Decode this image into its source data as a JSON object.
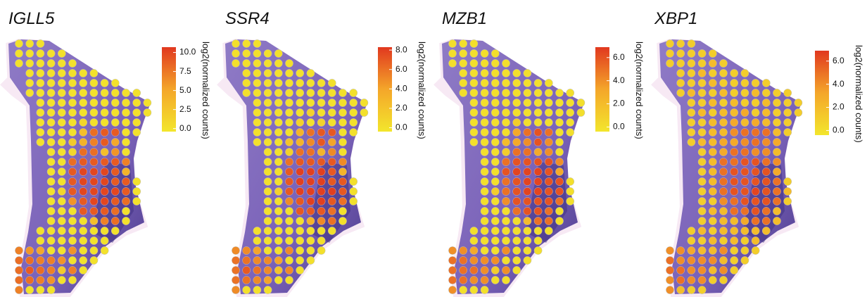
{
  "chart_data": [
    {
      "type": "spatial",
      "title": "IGLL5",
      "colorbar_label": "log2(normalized counts)",
      "colormap": [
        "#f3e62c",
        "#f4a62a",
        "#e1381f"
      ],
      "clim": [
        -0.4,
        10.7
      ],
      "cticks": [
        {
          "value": 0,
          "label": "0.0"
        },
        {
          "value": 2.5,
          "label": "2.5"
        },
        {
          "value": 5,
          "label": "5.0"
        },
        {
          "value": 7.5,
          "label": "7.5"
        },
        {
          "value": 10,
          "label": "10.0"
        }
      ],
      "grid": [
        [
          0,
          0,
          0
        ],
        [
          0,
          0,
          0,
          0,
          0
        ],
        [
          0,
          0,
          0,
          0,
          0,
          0
        ],
        [
          null,
          0,
          0,
          0,
          0,
          0,
          0,
          0
        ],
        [
          null,
          0,
          0,
          0,
          0,
          0,
          0,
          0,
          0,
          0
        ],
        [
          null,
          0,
          0,
          0,
          0,
          0,
          0,
          0,
          0,
          0,
          0,
          0
        ],
        [
          null,
          null,
          0,
          0,
          0,
          0,
          0,
          0,
          0,
          0,
          0,
          0,
          0
        ],
        [
          null,
          null,
          0,
          0,
          0,
          0,
          0,
          0,
          0,
          0,
          0,
          0,
          0
        ],
        [
          null,
          null,
          0,
          0,
          0,
          0,
          1,
          0,
          0,
          0,
          0,
          0
        ],
        [
          null,
          null,
          0,
          0,
          0,
          0,
          3,
          8,
          9,
          9,
          0,
          0
        ],
        [
          null,
          null,
          0,
          0,
          0,
          2,
          4,
          7,
          9,
          5,
          0
        ],
        [
          null,
          null,
          null,
          0,
          0,
          1,
          8,
          8,
          3,
          6,
          0
        ],
        [
          null,
          null,
          null,
          0,
          0,
          8,
          9,
          9,
          9,
          9,
          7
        ],
        [
          null,
          null,
          null,
          0,
          0,
          9,
          10,
          10,
          10,
          9,
          4
        ],
        [
          null,
          null,
          null,
          0,
          0,
          9,
          10,
          10,
          10,
          9,
          9,
          0
        ],
        [
          null,
          null,
          null,
          0,
          1,
          9,
          10,
          10,
          10,
          10,
          9,
          0
        ],
        [
          null,
          null,
          null,
          0,
          0,
          6,
          9,
          10,
          10,
          9,
          8,
          0
        ],
        [
          null,
          null,
          null,
          0,
          0,
          0,
          9,
          9,
          9,
          8,
          0
        ],
        [
          null,
          null,
          null,
          0,
          0,
          0,
          0,
          3,
          7,
          8,
          0
        ],
        [
          null,
          null,
          0,
          0,
          0,
          0,
          0,
          0,
          0,
          0
        ],
        [
          null,
          null,
          0,
          0,
          0,
          0,
          0,
          0,
          0
        ],
        [
          7,
          6,
          5,
          0,
          0,
          6,
          0,
          0,
          0
        ],
        [
          8,
          8,
          7,
          7,
          6,
          0,
          0,
          0
        ],
        [
          8,
          9,
          8,
          7,
          2,
          7,
          0
        ],
        [
          8,
          8,
          7,
          6,
          0,
          0
        ],
        [
          7,
          0,
          0,
          0
        ]
      ]
    },
    {
      "type": "spatial",
      "title": "SSR4",
      "colorbar_label": "log2(normalized counts)",
      "colormap": [
        "#f3e62c",
        "#f4a62a",
        "#e1381f"
      ],
      "clim": [
        -0.4,
        8.3
      ],
      "cticks": [
        {
          "value": 0,
          "label": "0.0"
        },
        {
          "value": 2,
          "label": "2.0"
        },
        {
          "value": 4,
          "label": "4.0"
        },
        {
          "value": 6,
          "label": "6.0"
        },
        {
          "value": 8,
          "label": "8.0"
        }
      ],
      "grid": [
        [
          0,
          0,
          0
        ],
        [
          0,
          0,
          0,
          0,
          0
        ],
        [
          0,
          0,
          0,
          0,
          0,
          0
        ],
        [
          null,
          0,
          0,
          0,
          0,
          0,
          0,
          0
        ],
        [
          null,
          0,
          0,
          0,
          0,
          0,
          0,
          0,
          0,
          0
        ],
        [
          null,
          0,
          0,
          0,
          0,
          0,
          0,
          0,
          0,
          0,
          0,
          0
        ],
        [
          null,
          null,
          0,
          0,
          0,
          0,
          0,
          0,
          0,
          0,
          0,
          0,
          0
        ],
        [
          null,
          null,
          0,
          0,
          0,
          0,
          0,
          1,
          0,
          0,
          0,
          0,
          0
        ],
        [
          null,
          null,
          0,
          0,
          0,
          0,
          1,
          0,
          1,
          0,
          0,
          0
        ],
        [
          null,
          null,
          0,
          0,
          0,
          0,
          3,
          6,
          7,
          7,
          0,
          0
        ],
        [
          null,
          null,
          0,
          0,
          0,
          2,
          3,
          5,
          7,
          4,
          0
        ],
        [
          null,
          null,
          null,
          0,
          0,
          1,
          6,
          6,
          3,
          5,
          0
        ],
        [
          null,
          null,
          null,
          0,
          0,
          6,
          7,
          7,
          7,
          7,
          5
        ],
        [
          null,
          null,
          null,
          0,
          0,
          7,
          8,
          8,
          8,
          7,
          3
        ],
        [
          null,
          null,
          null,
          0,
          0,
          7,
          8,
          8,
          8,
          7,
          7,
          0
        ],
        [
          null,
          null,
          null,
          0,
          1,
          7,
          8,
          8,
          8,
          8,
          7,
          0
        ],
        [
          null,
          null,
          null,
          0,
          0,
          5,
          7,
          8,
          8,
          7,
          6,
          0
        ],
        [
          null,
          null,
          null,
          0,
          0,
          0,
          7,
          7,
          7,
          6,
          0
        ],
        [
          null,
          null,
          null,
          0,
          0,
          0,
          0,
          3,
          5,
          6,
          0
        ],
        [
          null,
          null,
          0,
          0,
          0,
          0,
          0,
          0,
          0,
          0
        ],
        [
          null,
          null,
          0,
          0,
          0,
          0,
          0,
          0,
          0
        ],
        [
          5,
          5,
          4,
          0,
          0,
          5,
          0,
          0,
          0
        ],
        [
          6,
          6,
          5,
          5,
          4,
          0,
          0,
          0
        ],
        [
          6,
          7,
          6,
          5,
          2,
          5,
          0
        ],
        [
          6,
          6,
          5,
          4,
          0,
          0
        ],
        [
          5,
          0,
          0,
          0
        ]
      ]
    },
    {
      "type": "spatial",
      "title": "MZB1",
      "colorbar_label": "log2(normalized counts)",
      "colormap": [
        "#f3e62c",
        "#f4a62a",
        "#e1381f"
      ],
      "clim": [
        -0.4,
        6.9
      ],
      "cticks": [
        {
          "value": 0,
          "label": "0.0"
        },
        {
          "value": 2,
          "label": "2.0"
        },
        {
          "value": 4,
          "label": "4.0"
        },
        {
          "value": 6,
          "label": "6.0"
        }
      ],
      "grid": [
        [
          0,
          0,
          0
        ],
        [
          0,
          0,
          0,
          0,
          0
        ],
        [
          0,
          0,
          0,
          0,
          0,
          0
        ],
        [
          null,
          0,
          0,
          0,
          0,
          0,
          0,
          0
        ],
        [
          null,
          0,
          0,
          0,
          0,
          0,
          0,
          0,
          0,
          0
        ],
        [
          null,
          0,
          0,
          0,
          0,
          0,
          0,
          0,
          0,
          0,
          0,
          0
        ],
        [
          null,
          null,
          0,
          0,
          0,
          0,
          0,
          0,
          0,
          0,
          0,
          0,
          0
        ],
        [
          null,
          null,
          0,
          0,
          0,
          0,
          0,
          0,
          0,
          0,
          0,
          0,
          0
        ],
        [
          null,
          null,
          0,
          0,
          0,
          0,
          1,
          0,
          0,
          0,
          0,
          0
        ],
        [
          null,
          null,
          0,
          0,
          0,
          0,
          3,
          5,
          6,
          5,
          0,
          0
        ],
        [
          null,
          null,
          0,
          0,
          0,
          2,
          3,
          4,
          6,
          4,
          0
        ],
        [
          null,
          null,
          null,
          0,
          0,
          1,
          5,
          5,
          3,
          4,
          0
        ],
        [
          null,
          null,
          null,
          0,
          0,
          5,
          6,
          6,
          6,
          6,
          4
        ],
        [
          null,
          null,
          null,
          0,
          0,
          6,
          6.5,
          6.5,
          6.5,
          6,
          3
        ],
        [
          null,
          null,
          null,
          0,
          0,
          5,
          6,
          6.5,
          6.5,
          6,
          6,
          0
        ],
        [
          null,
          null,
          null,
          0,
          1,
          5,
          6,
          6.5,
          6.5,
          6,
          6,
          0
        ],
        [
          null,
          null,
          null,
          0,
          0,
          4,
          6,
          6,
          6,
          6,
          5,
          0
        ],
        [
          null,
          null,
          null,
          0,
          0,
          0,
          5,
          6,
          6,
          5,
          0
        ],
        [
          null,
          null,
          null,
          0,
          0,
          0,
          0,
          2,
          5,
          5,
          0
        ],
        [
          null,
          null,
          0,
          0,
          0,
          0,
          0,
          0,
          0,
          0
        ],
        [
          null,
          null,
          0,
          0,
          0,
          0,
          0,
          0,
          0
        ],
        [
          4,
          4,
          3,
          0,
          0,
          4,
          0,
          0,
          0
        ],
        [
          5,
          5,
          4,
          4,
          4,
          0,
          0,
          0
        ],
        [
          5,
          5,
          5,
          4,
          1,
          4,
          0
        ],
        [
          5,
          5,
          4,
          4,
          0,
          0
        ],
        [
          4,
          0,
          0,
          0
        ]
      ]
    },
    {
      "type": "spatial",
      "title": "XBP1",
      "colorbar_label": "log2(normalized counts)",
      "colormap": [
        "#f3e62c",
        "#f4a62a",
        "#e1381f"
      ],
      "clim": [
        -0.4,
        6.9
      ],
      "cticks": [
        {
          "value": 0,
          "label": "0.0"
        },
        {
          "value": 2,
          "label": "2.0"
        },
        {
          "value": 4,
          "label": "4.0"
        },
        {
          "value": 6,
          "label": "6.0"
        }
      ],
      "grid": [
        [
          1,
          1,
          1
        ],
        [
          1,
          1,
          1,
          1,
          1
        ],
        [
          1,
          1,
          1,
          1,
          2,
          1
        ],
        [
          null,
          1,
          1,
          2,
          1,
          1,
          1,
          1
        ],
        [
          null,
          1,
          1,
          1,
          2,
          1,
          1,
          1,
          1,
          1
        ],
        [
          null,
          1,
          2,
          1,
          1,
          2,
          1,
          1,
          2,
          1,
          1,
          1
        ],
        [
          null,
          null,
          1,
          1,
          2,
          1,
          2,
          1,
          1,
          2,
          1,
          1,
          1
        ],
        [
          null,
          null,
          1,
          2,
          1,
          2,
          2,
          3,
          1,
          2,
          1,
          1,
          1
        ],
        [
          null,
          null,
          1,
          1,
          2,
          2,
          3,
          2,
          3,
          2,
          1,
          1
        ],
        [
          null,
          null,
          1,
          1,
          2,
          2,
          4,
          5,
          5,
          5,
          2,
          1
        ],
        [
          null,
          null,
          1,
          2,
          2,
          3,
          3,
          4,
          5,
          4,
          3
        ],
        [
          null,
          null,
          null,
          1,
          2,
          3,
          5,
          5,
          4,
          4,
          2
        ],
        [
          null,
          null,
          null,
          1,
          2,
          5,
          5,
          6,
          6,
          5,
          4
        ],
        [
          null,
          null,
          null,
          1,
          2,
          5,
          6,
          6,
          6,
          6,
          3
        ],
        [
          null,
          null,
          null,
          1,
          2,
          5,
          6,
          6,
          6,
          6,
          5,
          1
        ],
        [
          null,
          null,
          null,
          1,
          2,
          5,
          6,
          6,
          6.5,
          6,
          5,
          2
        ],
        [
          null,
          null,
          null,
          1,
          1,
          4,
          5,
          6,
          6,
          6,
          5,
          1
        ],
        [
          null,
          null,
          null,
          1,
          2,
          2,
          5,
          5,
          6,
          5,
          2
        ],
        [
          null,
          null,
          null,
          1,
          1,
          2,
          2,
          3,
          5,
          5,
          2
        ],
        [
          null,
          null,
          1,
          2,
          1,
          2,
          2,
          2,
          2,
          2
        ],
        [
          null,
          null,
          1,
          1,
          2,
          1,
          2,
          1,
          2
        ],
        [
          4,
          4,
          3,
          2,
          2,
          4,
          1,
          1,
          1
        ],
        [
          5,
          4,
          4,
          4,
          4,
          2,
          1,
          1
        ],
        [
          5,
          5,
          4,
          4,
          2,
          4,
          1
        ],
        [
          4,
          5,
          4,
          4,
          1,
          1
        ],
        [
          4,
          2,
          1,
          1
        ]
      ]
    }
  ]
}
